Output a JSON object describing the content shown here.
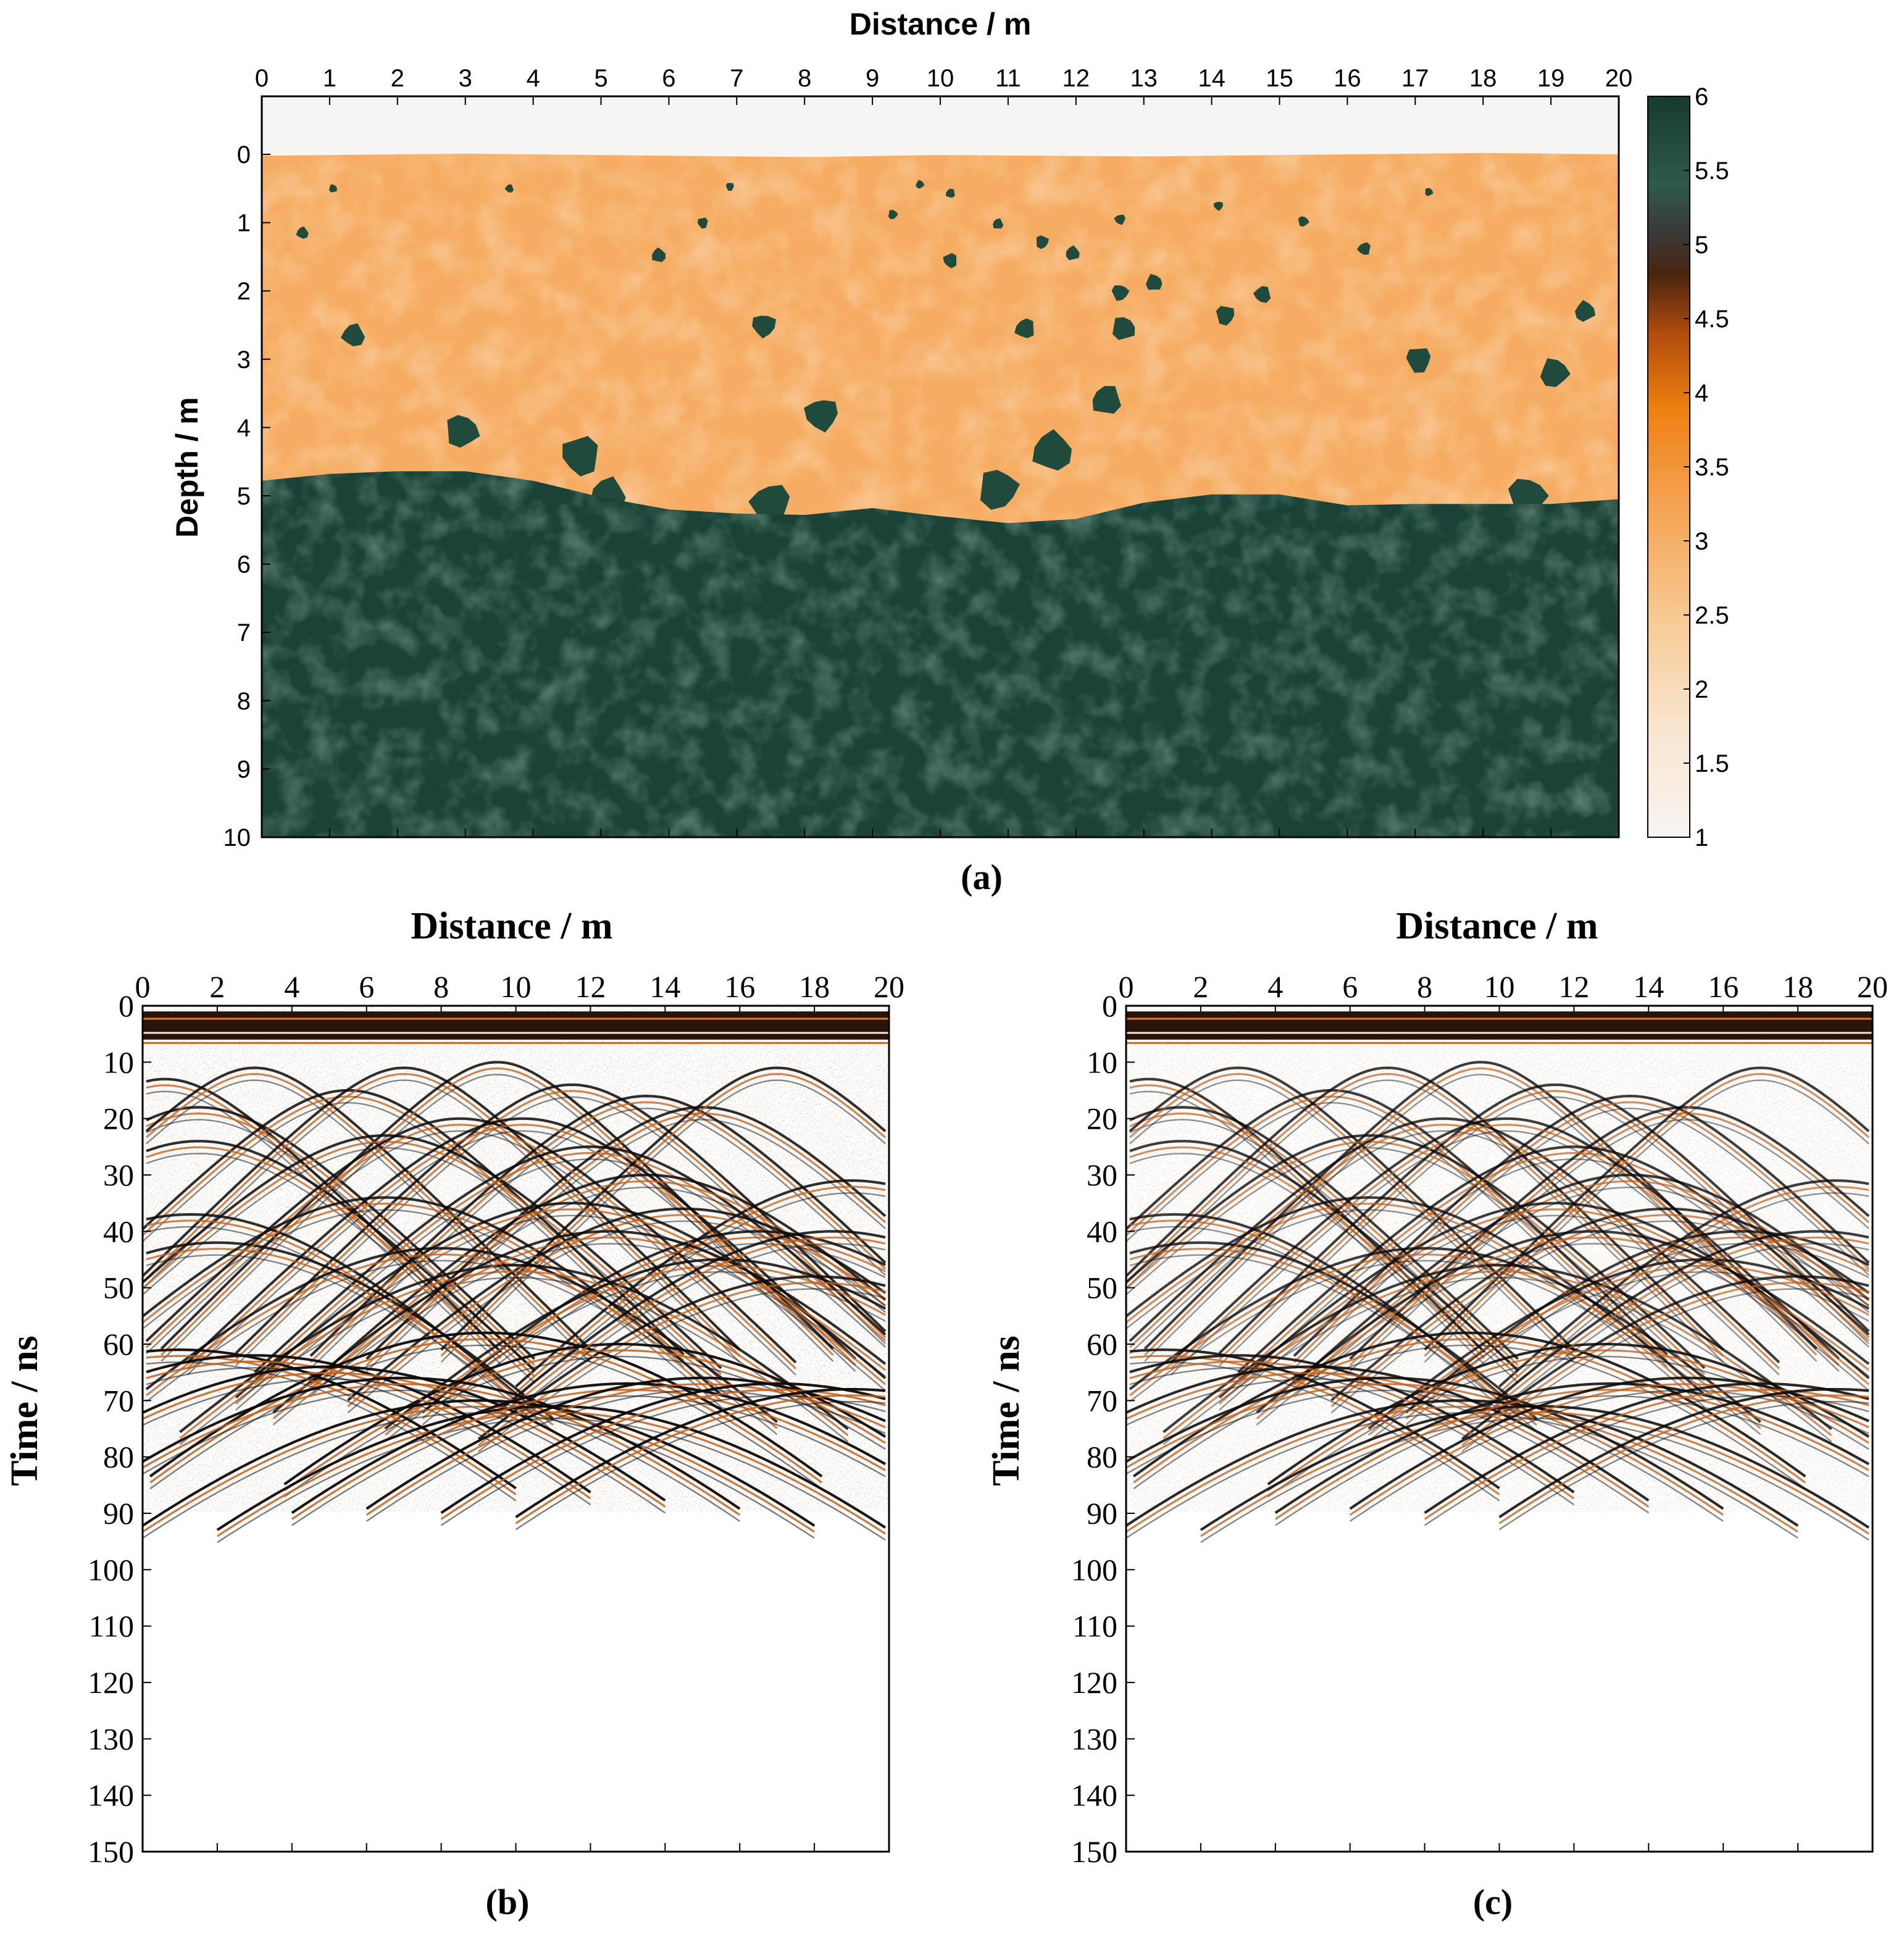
{
  "chart_data": [
    {
      "id": "a",
      "type": "heatmap",
      "caption": "(a)",
      "xlabel": "Distance / m",
      "ylabel": "Depth / m",
      "x_range": [
        0,
        20
      ],
      "x_ticks": [
        0,
        1,
        2,
        3,
        4,
        5,
        6,
        7,
        8,
        9,
        10,
        11,
        12,
        13,
        14,
        15,
        16,
        17,
        18,
        19,
        20
      ],
      "y_range": [
        -0.85,
        10
      ],
      "y_ticks": [
        0,
        1,
        2,
        3,
        4,
        5,
        6,
        7,
        8,
        9,
        10
      ],
      "colorbar": {
        "range": [
          1,
          6
        ],
        "ticks": [
          "1",
          "1.5",
          "2",
          "2.5",
          "3",
          "3.5",
          "4",
          "4.5",
          "5",
          "5.5",
          "6"
        ],
        "colors": [
          "#f7f4f1",
          "#f8ddbf",
          "#f5b46d",
          "#ef8a22",
          "#b44e10",
          "#5a2a0e",
          "#3a3a3a",
          "#2f5a4a",
          "#1f4a3c",
          "#163d30"
        ]
      },
      "air_value": 1,
      "soil_value": 3.4,
      "bedrock_value": 6,
      "surface": [
        [
          0,
          0.02
        ],
        [
          3,
          -0.01
        ],
        [
          6,
          0.02
        ],
        [
          8,
          0.04
        ],
        [
          10,
          0.01
        ],
        [
          13,
          0.03
        ],
        [
          16,
          0.0
        ],
        [
          18,
          -0.02
        ],
        [
          20,
          0.0
        ]
      ],
      "interface": [
        [
          0,
          4.78
        ],
        [
          1,
          4.68
        ],
        [
          2,
          4.64
        ],
        [
          3,
          4.64
        ],
        [
          4,
          4.78
        ],
        [
          5,
          5.02
        ],
        [
          6,
          5.2
        ],
        [
          7,
          5.26
        ],
        [
          8,
          5.28
        ],
        [
          9,
          5.18
        ],
        [
          10,
          5.3
        ],
        [
          11,
          5.4
        ],
        [
          12,
          5.34
        ],
        [
          13,
          5.1
        ],
        [
          14,
          4.98
        ],
        [
          15,
          4.98
        ],
        [
          16,
          5.14
        ],
        [
          17,
          5.12
        ],
        [
          18,
          5.12
        ],
        [
          19,
          5.12
        ],
        [
          20,
          5.05
        ]
      ],
      "boulders": [
        [
          1.05,
          0.5,
          0.07
        ],
        [
          3.65,
          0.5,
          0.07
        ],
        [
          6.9,
          0.47,
          0.07
        ],
        [
          9.7,
          0.44,
          0.07
        ],
        [
          10.15,
          0.57,
          0.08
        ],
        [
          14.1,
          0.75,
          0.08
        ],
        [
          17.2,
          0.55,
          0.07
        ],
        [
          0.6,
          1.15,
          0.1
        ],
        [
          6.5,
          1.0,
          0.09
        ],
        [
          9.3,
          0.88,
          0.08
        ],
        [
          10.85,
          1.02,
          0.09
        ],
        [
          12.65,
          0.95,
          0.09
        ],
        [
          15.35,
          0.98,
          0.09
        ],
        [
          5.85,
          1.48,
          0.12
        ],
        [
          10.15,
          1.55,
          0.12
        ],
        [
          11.5,
          1.28,
          0.11
        ],
        [
          11.95,
          1.45,
          0.12
        ],
        [
          16.25,
          1.38,
          0.11
        ],
        [
          12.65,
          2.02,
          0.14
        ],
        [
          13.15,
          1.88,
          0.14
        ],
        [
          14.75,
          2.05,
          0.14
        ],
        [
          14.2,
          2.35,
          0.16
        ],
        [
          19.5,
          2.3,
          0.17
        ],
        [
          11.25,
          2.55,
          0.17
        ],
        [
          7.4,
          2.5,
          0.2
        ],
        [
          12.7,
          2.55,
          0.2
        ],
        [
          1.35,
          2.65,
          0.19
        ],
        [
          17.05,
          3.0,
          0.21
        ],
        [
          19.05,
          3.2,
          0.24
        ],
        [
          12.45,
          3.6,
          0.25
        ],
        [
          8.25,
          3.8,
          0.28
        ],
        [
          2.95,
          4.05,
          0.28
        ],
        [
          11.65,
          4.35,
          0.33
        ],
        [
          4.7,
          4.4,
          0.32
        ],
        [
          10.85,
          4.9,
          0.33
        ],
        [
          5.1,
          5.0,
          0.3
        ],
        [
          7.5,
          5.1,
          0.33
        ],
        [
          18.65,
          5.0,
          0.32
        ]
      ]
    },
    {
      "id": "b",
      "type": "heatmap",
      "caption": "(b)",
      "xlabel": "Distance / m",
      "ylabel": "Time / ns",
      "x_range": [
        0,
        20
      ],
      "x_ticks": [
        0,
        2,
        4,
        6,
        8,
        10,
        12,
        14,
        16,
        18,
        20
      ],
      "y_range": [
        0,
        150
      ],
      "y_ticks": [
        0,
        10,
        20,
        30,
        40,
        50,
        60,
        70,
        80,
        90,
        100,
        110,
        120,
        130,
        140,
        150
      ],
      "direct_wave_ns": [
        1,
        6
      ],
      "reflectors": [
        {
          "x": 0.6,
          "t": 13
        },
        {
          "x": 1.5,
          "t": 18
        },
        {
          "x": 3,
          "t": 11
        },
        {
          "x": 5.5,
          "t": 15
        },
        {
          "x": 7,
          "t": 11
        },
        {
          "x": 9.5,
          "t": 10
        },
        {
          "x": 11.5,
          "t": 14
        },
        {
          "x": 13.5,
          "t": 16
        },
        {
          "x": 15,
          "t": 18
        },
        {
          "x": 17,
          "t": 11
        },
        {
          "x": 19,
          "t": 31
        },
        {
          "x": 1.5,
          "t": 24
        },
        {
          "x": 6.5,
          "t": 23
        },
        {
          "x": 8.5,
          "t": 20
        },
        {
          "x": 10.2,
          "t": 20
        },
        {
          "x": 12,
          "t": 25
        },
        {
          "x": 13.5,
          "t": 30
        },
        {
          "x": 14.5,
          "t": 36
        },
        {
          "x": 16.5,
          "t": 40
        },
        {
          "x": 11.5,
          "t": 35
        },
        {
          "x": 1.3,
          "t": 37
        },
        {
          "x": 2,
          "t": 42
        },
        {
          "x": 6.5,
          "t": 34
        },
        {
          "x": 8,
          "t": 43
        },
        {
          "x": 10,
          "t": 46
        },
        {
          "x": 12.5,
          "t": 40
        },
        {
          "x": 15.5,
          "t": 45
        },
        {
          "x": 18,
          "t": 48
        },
        {
          "x": 9.2,
          "t": 58
        },
        {
          "x": 12.8,
          "t": 60
        },
        {
          "x": 18.5,
          "t": 40
        },
        {
          "x": 1,
          "t": 61
        },
        {
          "x": 3,
          "t": 62
        },
        {
          "x": 5,
          "t": 64
        },
        {
          "x": 7,
          "t": 66
        },
        {
          "x": 9,
          "t": 70
        },
        {
          "x": 11,
          "t": 71
        },
        {
          "x": 13,
          "t": 67
        },
        {
          "x": 15,
          "t": 66
        },
        {
          "x": 17,
          "t": 67
        },
        {
          "x": 19,
          "t": 68
        }
      ]
    },
    {
      "id": "c",
      "type": "heatmap",
      "caption": "(c)",
      "xlabel": "Distance / m",
      "ylabel": "Time / ns",
      "x_range": [
        0,
        20
      ],
      "x_ticks": [
        0,
        2,
        4,
        6,
        8,
        10,
        12,
        14,
        16,
        18,
        20
      ],
      "y_range": [
        0,
        150
      ],
      "y_ticks": [
        0,
        10,
        20,
        30,
        40,
        50,
        60,
        70,
        80,
        90,
        100,
        110,
        120,
        130,
        140,
        150
      ],
      "direct_wave_ns": [
        1,
        6
      ],
      "reflectors": [
        {
          "x": 0.6,
          "t": 13
        },
        {
          "x": 1.5,
          "t": 18
        },
        {
          "x": 3,
          "t": 11
        },
        {
          "x": 5.5,
          "t": 15
        },
        {
          "x": 7,
          "t": 11
        },
        {
          "x": 9.5,
          "t": 10
        },
        {
          "x": 11.5,
          "t": 14
        },
        {
          "x": 13.5,
          "t": 16
        },
        {
          "x": 15,
          "t": 18
        },
        {
          "x": 17,
          "t": 11
        },
        {
          "x": 19,
          "t": 31
        },
        {
          "x": 1.5,
          "t": 24
        },
        {
          "x": 6.5,
          "t": 23
        },
        {
          "x": 8.5,
          "t": 20
        },
        {
          "x": 10.2,
          "t": 20
        },
        {
          "x": 12,
          "t": 25
        },
        {
          "x": 13.5,
          "t": 30
        },
        {
          "x": 14.5,
          "t": 36
        },
        {
          "x": 16.5,
          "t": 40
        },
        {
          "x": 11.5,
          "t": 35
        },
        {
          "x": 1.3,
          "t": 37
        },
        {
          "x": 2,
          "t": 42
        },
        {
          "x": 6.5,
          "t": 34
        },
        {
          "x": 8,
          "t": 43
        },
        {
          "x": 10,
          "t": 46
        },
        {
          "x": 12.5,
          "t": 40
        },
        {
          "x": 15.5,
          "t": 45
        },
        {
          "x": 18,
          "t": 48
        },
        {
          "x": 9.2,
          "t": 58
        },
        {
          "x": 12.8,
          "t": 60
        },
        {
          "x": 18.5,
          "t": 40
        },
        {
          "x": 1,
          "t": 61
        },
        {
          "x": 3,
          "t": 62
        },
        {
          "x": 5,
          "t": 64
        },
        {
          "x": 7,
          "t": 66
        },
        {
          "x": 9,
          "t": 70
        },
        {
          "x": 11,
          "t": 71
        },
        {
          "x": 13,
          "t": 67
        },
        {
          "x": 15,
          "t": 66
        },
        {
          "x": 17,
          "t": 67
        },
        {
          "x": 19,
          "t": 68
        }
      ]
    }
  ]
}
